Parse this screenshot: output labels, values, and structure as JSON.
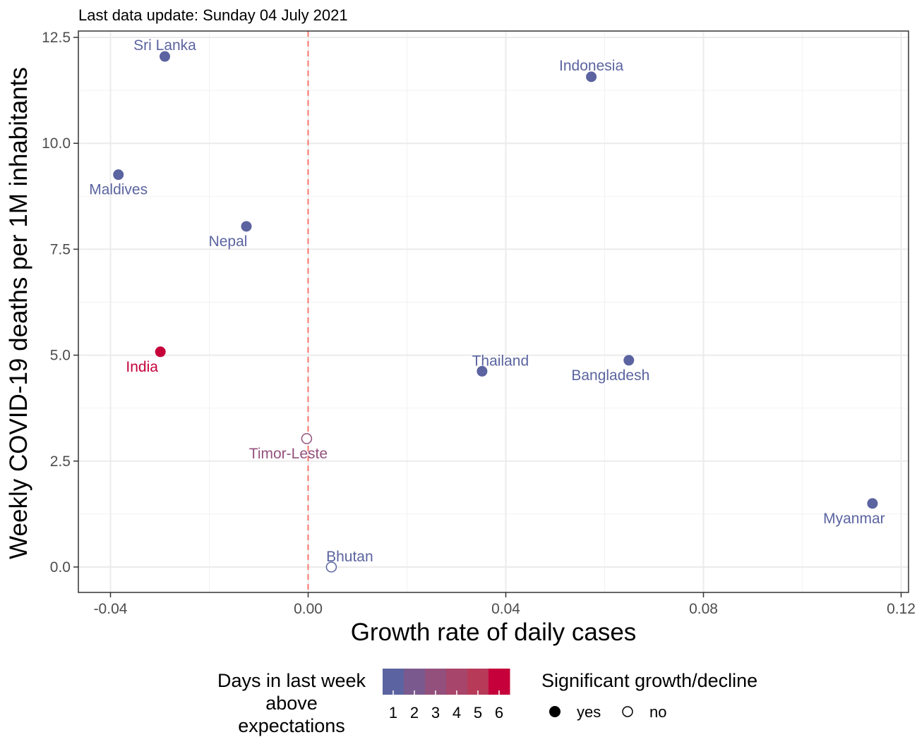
{
  "chart_data": {
    "type": "scatter",
    "subtitle": "Last data update: Sunday 04 July 2021",
    "xlabel": "Growth rate of daily cases",
    "ylabel": "Weekly COVID-19 deaths per 1M inhabitants",
    "xlim": [
      -0.0465,
      0.1215
    ],
    "ylim": [
      -0.6,
      12.65
    ],
    "x_ticks": [
      {
        "value": -0.04,
        "label": "-0.04"
      },
      {
        "value": 0.0,
        "label": "0.00"
      },
      {
        "value": 0.04,
        "label": "0.04"
      },
      {
        "value": 0.08,
        "label": "0.08"
      },
      {
        "value": 0.12,
        "label": "0.12"
      }
    ],
    "y_ticks": [
      {
        "value": 0.0,
        "label": "0.0"
      },
      {
        "value": 2.5,
        "label": "2.5"
      },
      {
        "value": 5.0,
        "label": "5.0"
      },
      {
        "value": 7.5,
        "label": "7.5"
      },
      {
        "value": 10.0,
        "label": "10.0"
      },
      {
        "value": 12.5,
        "label": "12.5"
      }
    ],
    "reference_line": {
      "x": 0.0,
      "color": "#f8766d",
      "style": "dashed"
    },
    "grid": true,
    "points": [
      {
        "label": "Sri Lanka",
        "x": -0.029,
        "y": 12.05,
        "days": 1,
        "significant": true,
        "label_position": "above"
      },
      {
        "label": "Indonesia",
        "x": 0.0573,
        "y": 11.57,
        "days": 1,
        "significant": true,
        "label_position": "above"
      },
      {
        "label": "Maldives",
        "x": -0.0384,
        "y": 9.26,
        "days": 1,
        "significant": true,
        "label_position": "below"
      },
      {
        "label": "Nepal",
        "x": -0.0125,
        "y": 8.04,
        "days": 1,
        "significant": true,
        "label_position": "below-left"
      },
      {
        "label": "India",
        "x": -0.0299,
        "y": 5.08,
        "days": 6,
        "significant": true,
        "label_position": "below-left"
      },
      {
        "label": "Thailand",
        "x": 0.0352,
        "y": 4.62,
        "days": 1,
        "significant": true,
        "label_position": "above-right"
      },
      {
        "label": "Bangladesh",
        "x": 0.0649,
        "y": 4.88,
        "days": 1,
        "significant": true,
        "label_position": "below-left"
      },
      {
        "label": "Timor-Leste",
        "x": -0.0003,
        "y": 3.03,
        "days": 3,
        "significant": false,
        "label_position": "below-left"
      },
      {
        "label": "Myanmar",
        "x": 0.1142,
        "y": 1.5,
        "days": 1,
        "significant": true,
        "label_position": "below-left"
      },
      {
        "label": "Bhutan",
        "x": 0.0047,
        "y": 0.0,
        "days": 1,
        "significant": false,
        "label_position": "above-right"
      }
    ],
    "legend": {
      "placement": "bottom",
      "color_title_lines": [
        "Days in last week",
        "above",
        "expectations"
      ],
      "color_scale": {
        "min_value": 0.5,
        "max_value": 6.5,
        "low_color": "#5b64a0",
        "high_color": "#c5003a",
        "labels": [
          "1",
          "2",
          "3",
          "4",
          "5",
          "6"
        ]
      },
      "shape_title": "Significant growth/decline",
      "shape_entries": [
        {
          "label": "yes",
          "filled": true
        },
        {
          "label": "no",
          "filled": false
        }
      ]
    },
    "colors": {
      "grid_major": "#ebebeb",
      "grid_minor": "#f2f2f2",
      "panel_border": "#333333",
      "day_colors": [
        "#5b64a0",
        "#7a5a8e",
        "#94507c",
        "#a8456a",
        "#b73a58",
        "#c5003a"
      ]
    }
  }
}
